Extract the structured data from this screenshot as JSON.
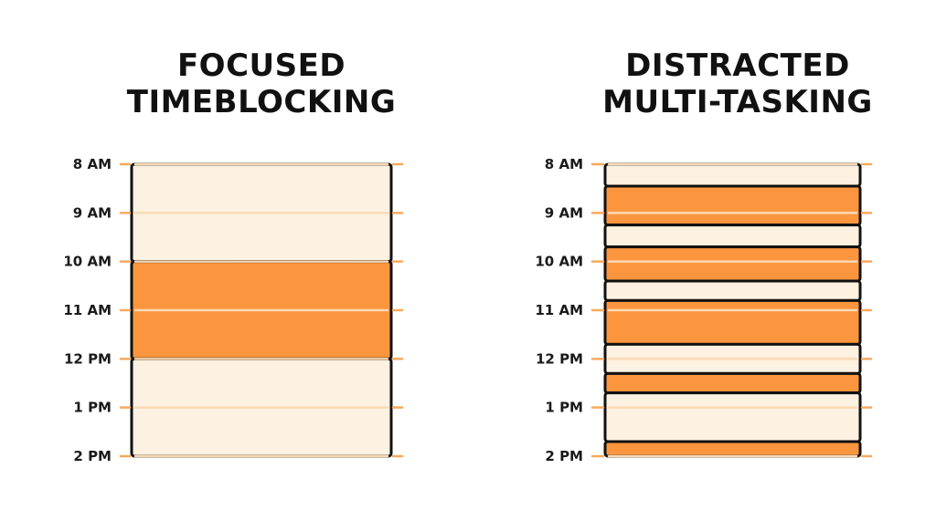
{
  "colors": {
    "focus": "#fb963f",
    "free": "#fdf1e1",
    "outline": "#111111",
    "gridline": "#fad9b4",
    "tick": "#f7a95c"
  },
  "panels": [
    {
      "id": "focused",
      "title_lines": [
        "FOCUSED",
        "TIMEBLOCKING"
      ],
      "time_labels": [
        "8 AM",
        "9 AM",
        "10 AM",
        "11 AM",
        "12 PM",
        "1 PM",
        "2 PM"
      ],
      "blocks": [
        {
          "start": 8,
          "end": 10,
          "kind": "free"
        },
        {
          "start": 10,
          "end": 12,
          "kind": "focus"
        },
        {
          "start": 12,
          "end": 14,
          "kind": "free"
        }
      ]
    },
    {
      "id": "distracted",
      "title_lines": [
        "DISTRACTED",
        "MULTI-TASKING"
      ],
      "time_labels": [
        "8 AM",
        "9 AM",
        "10 AM",
        "11 AM",
        "12 PM",
        "1 PM",
        "2 PM"
      ],
      "blocks": [
        {
          "start": 8.0,
          "end": 8.45,
          "kind": "free"
        },
        {
          "start": 8.45,
          "end": 9.25,
          "kind": "focus"
        },
        {
          "start": 9.25,
          "end": 9.7,
          "kind": "free"
        },
        {
          "start": 9.7,
          "end": 10.4,
          "kind": "focus"
        },
        {
          "start": 10.4,
          "end": 10.8,
          "kind": "free"
        },
        {
          "start": 10.8,
          "end": 11.7,
          "kind": "focus"
        },
        {
          "start": 11.7,
          "end": 12.3,
          "kind": "free"
        },
        {
          "start": 12.3,
          "end": 12.7,
          "kind": "focus"
        },
        {
          "start": 12.7,
          "end": 13.7,
          "kind": "free"
        },
        {
          "start": 13.7,
          "end": 14.0,
          "kind": "focus"
        }
      ]
    }
  ]
}
